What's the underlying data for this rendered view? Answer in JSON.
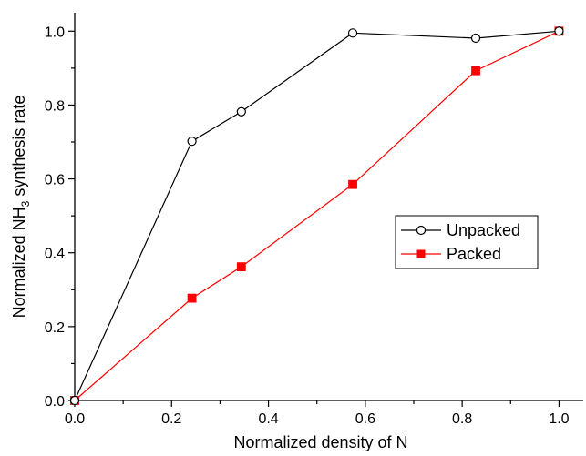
{
  "chart_data": {
    "type": "line",
    "xlabel": "Normalized density of N",
    "ylabel": {
      "prefix": "Normalized NH",
      "subscript": "3",
      "suffix": " synthesis rate"
    },
    "xlim": [
      0.0,
      1.05
    ],
    "ylim": [
      0.0,
      1.05
    ],
    "x_ticks": [
      "0.0",
      "0.2",
      "0.4",
      "0.6",
      "0.8",
      "1.0"
    ],
    "y_ticks": [
      "0.0",
      "0.2",
      "0.4",
      "0.6",
      "0.8",
      "1.0"
    ],
    "grid": false,
    "legend_position": "center-right",
    "series": [
      {
        "name": "Unpacked",
        "color": "#000000",
        "marker": "open-circle",
        "x": [
          0.0,
          0.242,
          0.344,
          0.574,
          0.828,
          1.0
        ],
        "y": [
          0.0,
          0.702,
          0.782,
          0.995,
          0.981,
          1.0
        ]
      },
      {
        "name": "Packed",
        "color": "#ff0000",
        "marker": "filled-square",
        "x": [
          0.0,
          0.242,
          0.344,
          0.574,
          0.828,
          1.0
        ],
        "y": [
          0.0,
          0.277,
          0.362,
          0.585,
          0.893,
          1.0
        ]
      }
    ]
  }
}
